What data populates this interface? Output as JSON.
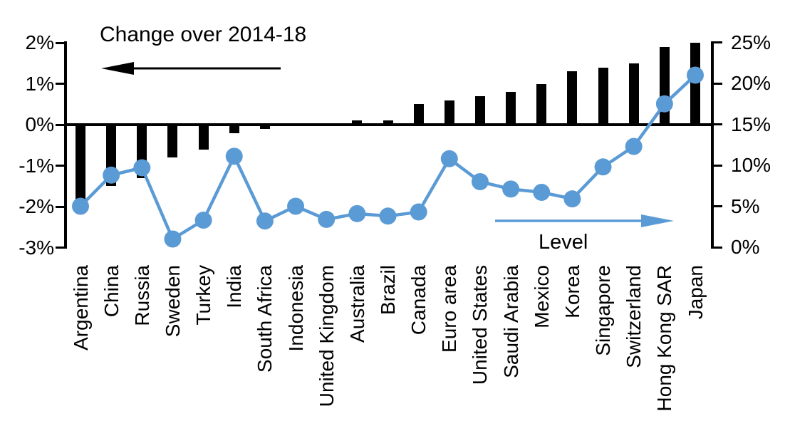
{
  "title": "Change over 2014-18",
  "level_label": "Level",
  "colors": {
    "bar": "#000000",
    "line": "#5B9BD5",
    "text": "#000000",
    "background": "#ffffff"
  },
  "left_axis_tick_labels": [
    "2%",
    "1%",
    "0%",
    "-1%",
    "-2%",
    "-3%"
  ],
  "right_axis_tick_labels": [
    "25%",
    "20%",
    "15%",
    "10%",
    "5%",
    "0%"
  ],
  "chart_data": {
    "type": "bar+line",
    "title": "Change over 2014-18",
    "categories": [
      "Argentina",
      "China",
      "Russia",
      "Sweden",
      "Turkey",
      "India",
      "South Africa",
      "Indonesia",
      "United Kingdom",
      "Australia",
      "Brazil",
      "Canada",
      "Euro area",
      "United States",
      "Saudi Arabia",
      "Mexico",
      "Korea",
      "Singapore",
      "Switzerland",
      "Hong Kong SAR",
      "Japan"
    ],
    "series": [
      {
        "name": "Change over 2014-18",
        "type": "bar",
        "axis": "left",
        "unit": "%",
        "values": [
          -2.0,
          -1.5,
          -1.3,
          -0.8,
          -0.6,
          -0.2,
          -0.1,
          0.0,
          0.0,
          0.1,
          0.1,
          0.5,
          0.6,
          0.7,
          0.8,
          1.0,
          1.3,
          1.4,
          1.5,
          1.9,
          2.0
        ]
      },
      {
        "name": "Level",
        "type": "line",
        "axis": "right",
        "unit": "%",
        "values": [
          5.0,
          8.8,
          9.7,
          1.0,
          3.3,
          11.1,
          3.2,
          5.0,
          3.4,
          4.1,
          3.8,
          4.3,
          10.8,
          8.0,
          7.1,
          6.7,
          5.9,
          9.8,
          12.3,
          17.5,
          21.0
        ]
      }
    ],
    "left_axis": {
      "min": -3,
      "max": 2,
      "ticks": [
        2,
        1,
        0,
        -1,
        -2,
        -3
      ],
      "format": "percent"
    },
    "right_axis": {
      "min": 0,
      "max": 25,
      "ticks": [
        25,
        20,
        15,
        10,
        5,
        0
      ],
      "format": "percent"
    },
    "grid": false,
    "legend": "none",
    "annotations": [
      {
        "text": "Change over 2014-18",
        "arrow_direction": "left",
        "refers_to": "left axis (bars)"
      },
      {
        "text": "Level",
        "arrow_direction": "right",
        "refers_to": "right axis (line)"
      }
    ]
  }
}
